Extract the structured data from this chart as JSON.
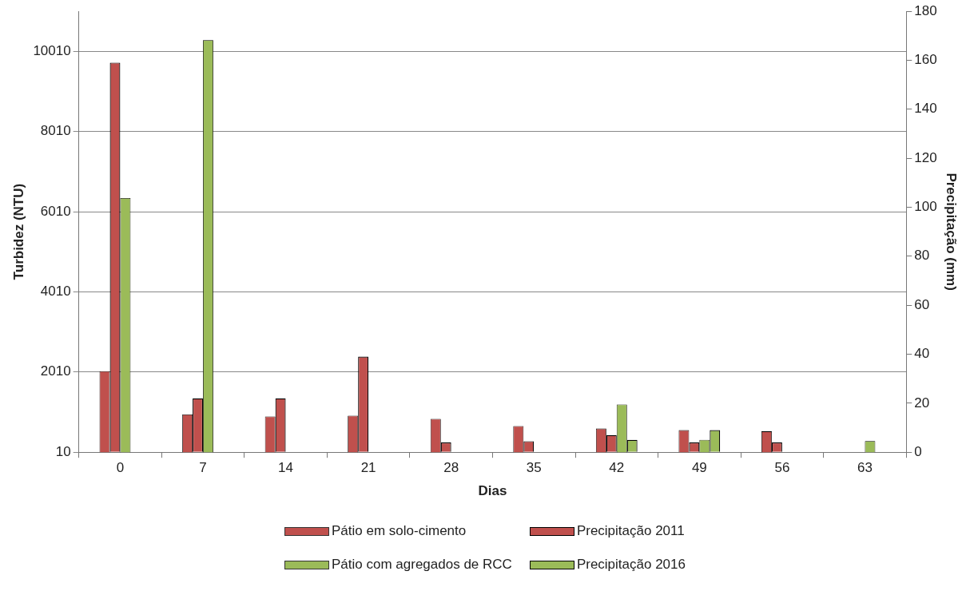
{
  "chart_data": {
    "type": "bar",
    "categories": [
      "0",
      "7",
      "14",
      "21",
      "28",
      "35",
      "42",
      "49",
      "56",
      "63"
    ],
    "xlabel": "Dias",
    "ylabel": "Turbidez (NTU)",
    "y2label": "Precipitação (mm)",
    "ylim": [
      10,
      11010
    ],
    "yticks": [
      10,
      2010,
      4010,
      6010,
      8010,
      10010
    ],
    "y2lim": [
      0,
      180
    ],
    "y2ticks": [
      0,
      20,
      40,
      60,
      80,
      100,
      120,
      140,
      160,
      180
    ],
    "grid": "y",
    "legend": "bottom",
    "series": [
      {
        "name": "Pátio em solo-cimento",
        "color": "#c0504d",
        "values": [
          2030,
          950,
          900,
          920,
          840,
          660,
          600,
          560,
          530,
          null
        ]
      },
      {
        "name": "Precipitação 2011",
        "color": "#c0504d",
        "axis": "y2",
        "values": [
          159,
          22,
          22,
          39,
          4,
          4.5,
          7,
          4,
          4,
          null
        ]
      },
      {
        "name": "Pátio com agregados de RCC",
        "color": "#9bbb59",
        "values": [
          6350,
          10290,
          null,
          null,
          null,
          null,
          1200,
          320,
          null,
          290
        ]
      },
      {
        "name": "Precipitação 2016",
        "color": "#9bbb59",
        "axis": "y2",
        "values": [
          null,
          null,
          null,
          null,
          null,
          null,
          5,
          9,
          null,
          null
        ]
      }
    ]
  }
}
